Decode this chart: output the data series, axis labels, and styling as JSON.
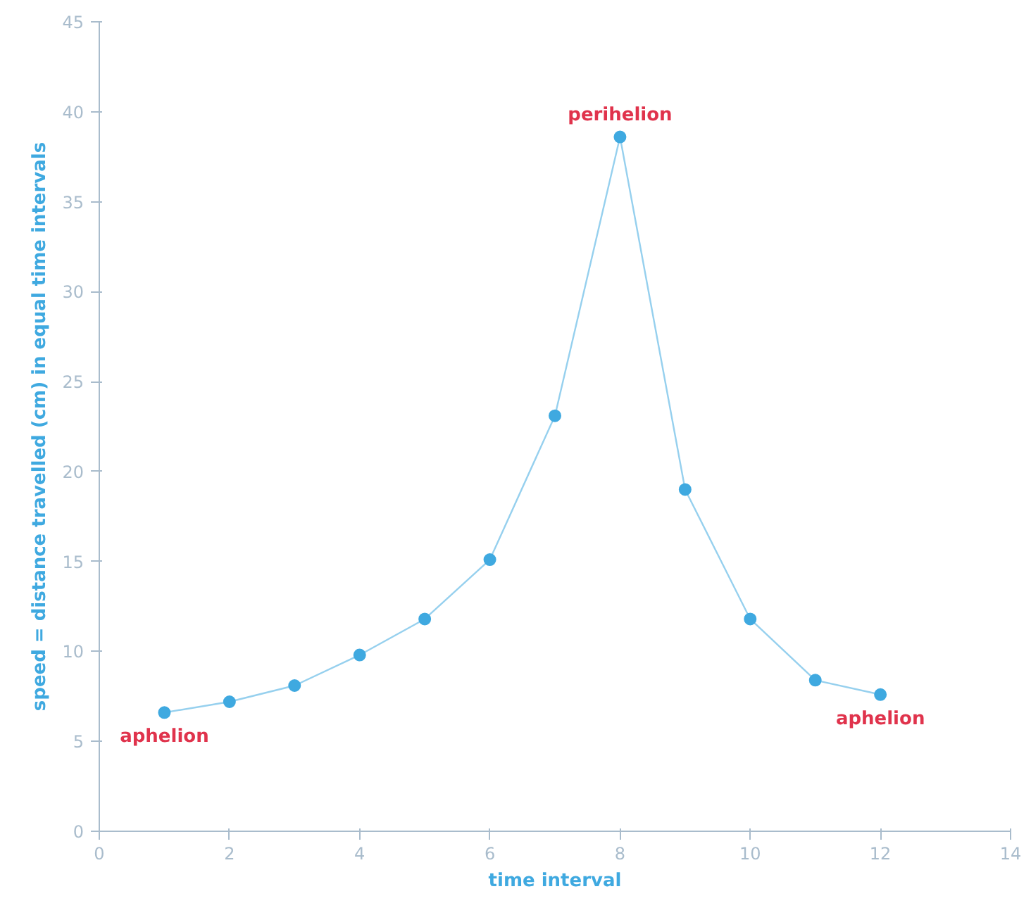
{
  "chart_data": {
    "type": "line",
    "xlabel": "time interval",
    "ylabel": "speed = distance travelled (cm) in equal time intervals",
    "x": [
      1,
      2,
      3,
      4,
      5,
      6,
      7,
      8,
      9,
      10,
      11,
      12
    ],
    "series": [
      {
        "color": "#3fa9e0",
        "values": [
          6.6,
          7.2,
          8.1,
          9.8,
          11.8,
          15.1,
          23.1,
          38.6,
          19.0,
          11.8,
          8.4,
          7.6
        ]
      }
    ],
    "xlim": [
      0,
      14
    ],
    "ylim": [
      0,
      45
    ],
    "xticks": [
      0,
      2,
      4,
      6,
      8,
      10,
      12,
      14
    ],
    "yticks": [
      0,
      5,
      10,
      15,
      20,
      25,
      30,
      35,
      40,
      45
    ],
    "grid": false,
    "marker": "circle",
    "line_style": "solid",
    "annotations": [
      {
        "text": "perihelion",
        "x": 8,
        "y": 38.6
      },
      {
        "text": "aphelion",
        "x": 1,
        "y": 6.6
      },
      {
        "text": "aphelion",
        "x": 12,
        "y": 7.6
      }
    ]
  }
}
